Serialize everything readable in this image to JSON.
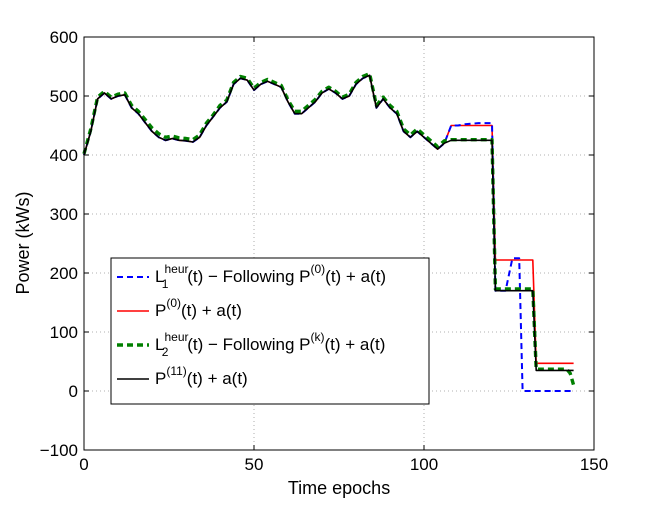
{
  "chart_data": {
    "type": "line",
    "title": "",
    "xlabel": "Time epochs",
    "ylabel": "Power (kWs)",
    "xlim": [
      0,
      150
    ],
    "ylim": [
      -100,
      600
    ],
    "xticks": [
      0,
      50,
      100,
      150
    ],
    "yticks": [
      -100,
      0,
      100,
      200,
      300,
      400,
      500,
      600
    ],
    "grid": true,
    "legend_position": "bottom-left",
    "series": [
      {
        "name": "L1heur(t) - Following P(0)(t) + a(t)",
        "legend": {
          "base": "L",
          "sub": "1",
          "sup": "heur",
          "after": "(t) − Following P",
          "after_sup": "(0)",
          "tail": "(t) + a(t)"
        },
        "color": "#0000ff",
        "style": "dashed",
        "x": [
          0,
          2,
          4,
          6,
          8,
          10,
          12,
          14,
          16,
          18,
          20,
          22,
          24,
          26,
          28,
          30,
          32,
          34,
          36,
          38,
          40,
          42,
          44,
          46,
          48,
          50,
          52,
          54,
          56,
          58,
          60,
          62,
          64,
          66,
          68,
          70,
          72,
          74,
          76,
          78,
          80,
          82,
          84,
          86,
          88,
          90,
          92,
          94,
          96,
          98,
          100,
          102,
          104,
          106,
          108,
          110,
          112,
          114,
          116,
          118,
          120,
          121,
          122,
          124,
          126,
          128,
          129,
          130,
          132,
          134,
          136,
          138,
          140,
          142,
          144
        ],
        "y": [
          400,
          440,
          495,
          505,
          495,
          500,
          502,
          480,
          470,
          455,
          440,
          430,
          425,
          428,
          425,
          424,
          422,
          430,
          450,
          465,
          480,
          490,
          520,
          530,
          527,
          510,
          520,
          525,
          520,
          515,
          490,
          470,
          470,
          480,
          490,
          505,
          512,
          505,
          495,
          500,
          520,
          530,
          535,
          480,
          495,
          480,
          470,
          440,
          430,
          440,
          430,
          420,
          410,
          420,
          450,
          450,
          452,
          453,
          454,
          454,
          454,
          170,
          170,
          170,
          225,
          225,
          0,
          0,
          0,
          0,
          0,
          0,
          0,
          0,
          0
        ]
      },
      {
        "name": "P(0)(t) + a(t)",
        "legend": {
          "base": "P",
          "sub": "",
          "sup": "(0)",
          "after": "(t) + a(t)",
          "after_sup": "",
          "tail": ""
        },
        "color": "#ff0000",
        "style": "solid",
        "x": [
          0,
          2,
          4,
          6,
          8,
          10,
          12,
          14,
          16,
          18,
          20,
          22,
          24,
          26,
          28,
          30,
          32,
          34,
          36,
          38,
          40,
          42,
          44,
          46,
          48,
          50,
          52,
          54,
          56,
          58,
          60,
          62,
          64,
          66,
          68,
          70,
          72,
          74,
          76,
          78,
          80,
          82,
          84,
          86,
          88,
          90,
          92,
          94,
          96,
          98,
          100,
          102,
          104,
          106,
          108,
          110,
          112,
          114,
          116,
          118,
          120,
          121,
          122,
          124,
          126,
          128,
          130,
          132,
          133,
          134,
          136,
          138,
          140,
          142,
          144
        ],
        "y": [
          400,
          440,
          495,
          505,
          495,
          500,
          502,
          480,
          470,
          455,
          440,
          430,
          425,
          428,
          425,
          424,
          422,
          430,
          450,
          465,
          480,
          490,
          520,
          530,
          527,
          510,
          520,
          525,
          520,
          515,
          490,
          470,
          470,
          480,
          490,
          505,
          512,
          505,
          495,
          500,
          520,
          530,
          535,
          480,
          495,
          480,
          470,
          440,
          430,
          440,
          430,
          420,
          410,
          420,
          450,
          450,
          450,
          450,
          450,
          450,
          450,
          222,
          222,
          222,
          222,
          222,
          222,
          222,
          47,
          47,
          47,
          47,
          47,
          47,
          47
        ]
      },
      {
        "name": "L2heur(t) - Following P(k)(t) + a(t)",
        "legend": {
          "base": "L",
          "sub": "2",
          "sup": "heur",
          "after": "(t) − Following P",
          "after_sup": "(k)",
          "tail": "(t) + a(t)"
        },
        "color": "#008000",
        "style": "dashed-thick",
        "x": [
          0,
          2,
          4,
          6,
          8,
          10,
          12,
          14,
          16,
          18,
          20,
          22,
          24,
          26,
          28,
          30,
          32,
          34,
          36,
          38,
          40,
          42,
          44,
          46,
          48,
          50,
          52,
          54,
          56,
          58,
          60,
          62,
          64,
          66,
          68,
          70,
          72,
          74,
          76,
          78,
          80,
          82,
          84,
          86,
          88,
          90,
          92,
          94,
          96,
          98,
          100,
          102,
          104,
          106,
          108,
          110,
          112,
          114,
          116,
          118,
          120,
          121,
          122,
          124,
          126,
          128,
          130,
          132,
          133,
          134,
          136,
          138,
          140,
          142,
          143,
          144
        ],
        "y": [
          402,
          444,
          498,
          508,
          498,
          503,
          505,
          484,
          474,
          460,
          446,
          436,
          430,
          432,
          429,
          428,
          426,
          434,
          454,
          468,
          484,
          493,
          523,
          533,
          530,
          513,
          523,
          528,
          523,
          518,
          493,
          474,
          474,
          484,
          494,
          508,
          515,
          508,
          498,
          503,
          523,
          533,
          538,
          484,
          498,
          484,
          474,
          444,
          434,
          444,
          434,
          424,
          414,
          424,
          426,
          426,
          426,
          426,
          426,
          426,
          426,
          173,
          173,
          173,
          173,
          173,
          173,
          173,
          37,
          37,
          37,
          37,
          37,
          37,
          30,
          10
        ]
      },
      {
        "name": "P(11)(t) + a(t)",
        "legend": {
          "base": "P",
          "sub": "",
          "sup": "(11)",
          "after": "(t) + a(t)",
          "after_sup": "",
          "tail": ""
        },
        "color": "#000000",
        "style": "solid",
        "x": [
          0,
          2,
          4,
          6,
          8,
          10,
          12,
          14,
          16,
          18,
          20,
          22,
          24,
          26,
          28,
          30,
          32,
          34,
          36,
          38,
          40,
          42,
          44,
          46,
          48,
          50,
          52,
          54,
          56,
          58,
          60,
          62,
          64,
          66,
          68,
          70,
          72,
          74,
          76,
          78,
          80,
          82,
          84,
          86,
          88,
          90,
          92,
          94,
          96,
          98,
          100,
          102,
          104,
          106,
          108,
          110,
          112,
          114,
          116,
          118,
          120,
          121,
          122,
          124,
          126,
          128,
          130,
          132,
          133,
          134,
          136,
          138,
          140,
          142,
          144
        ],
        "y": [
          400,
          440,
          495,
          505,
          495,
          500,
          502,
          480,
          470,
          455,
          440,
          430,
          425,
          428,
          425,
          424,
          422,
          430,
          450,
          465,
          480,
          490,
          520,
          530,
          527,
          510,
          520,
          525,
          520,
          515,
          490,
          470,
          470,
          480,
          490,
          505,
          512,
          505,
          495,
          500,
          520,
          530,
          535,
          480,
          495,
          480,
          470,
          440,
          430,
          440,
          430,
          420,
          410,
          420,
          425,
          425,
          425,
          425,
          425,
          425,
          425,
          170,
          170,
          170,
          170,
          170,
          170,
          170,
          35,
          35,
          35,
          35,
          35,
          35,
          35
        ]
      }
    ]
  }
}
